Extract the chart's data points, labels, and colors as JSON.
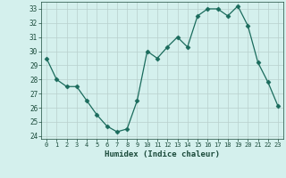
{
  "x": [
    0,
    1,
    2,
    3,
    4,
    5,
    6,
    7,
    8,
    9,
    10,
    11,
    12,
    13,
    14,
    15,
    16,
    17,
    18,
    19,
    20,
    21,
    22,
    23
  ],
  "y": [
    29.5,
    28.0,
    27.5,
    27.5,
    26.5,
    25.5,
    24.7,
    24.3,
    24.5,
    26.5,
    30.0,
    29.5,
    30.3,
    31.0,
    30.3,
    32.5,
    33.0,
    33.0,
    32.5,
    33.2,
    31.8,
    29.2,
    27.8,
    26.1
  ],
  "xlabel": "Humidex (Indice chaleur)",
  "xlim": [
    -0.5,
    23.5
  ],
  "ylim": [
    23.8,
    33.5
  ],
  "yticks": [
    24,
    25,
    26,
    27,
    28,
    29,
    30,
    31,
    32,
    33
  ],
  "xticks": [
    0,
    1,
    2,
    3,
    4,
    5,
    6,
    7,
    8,
    9,
    10,
    11,
    12,
    13,
    14,
    15,
    16,
    17,
    18,
    19,
    20,
    21,
    22,
    23
  ],
  "line_color": "#1a6b5c",
  "marker": "D",
  "marker_size": 2.5,
  "bg_color": "#d4f0ed",
  "grid_color": "#b8d0cc",
  "tick_color": "#1a4a3a",
  "xlabel_color": "#1a4a3a"
}
